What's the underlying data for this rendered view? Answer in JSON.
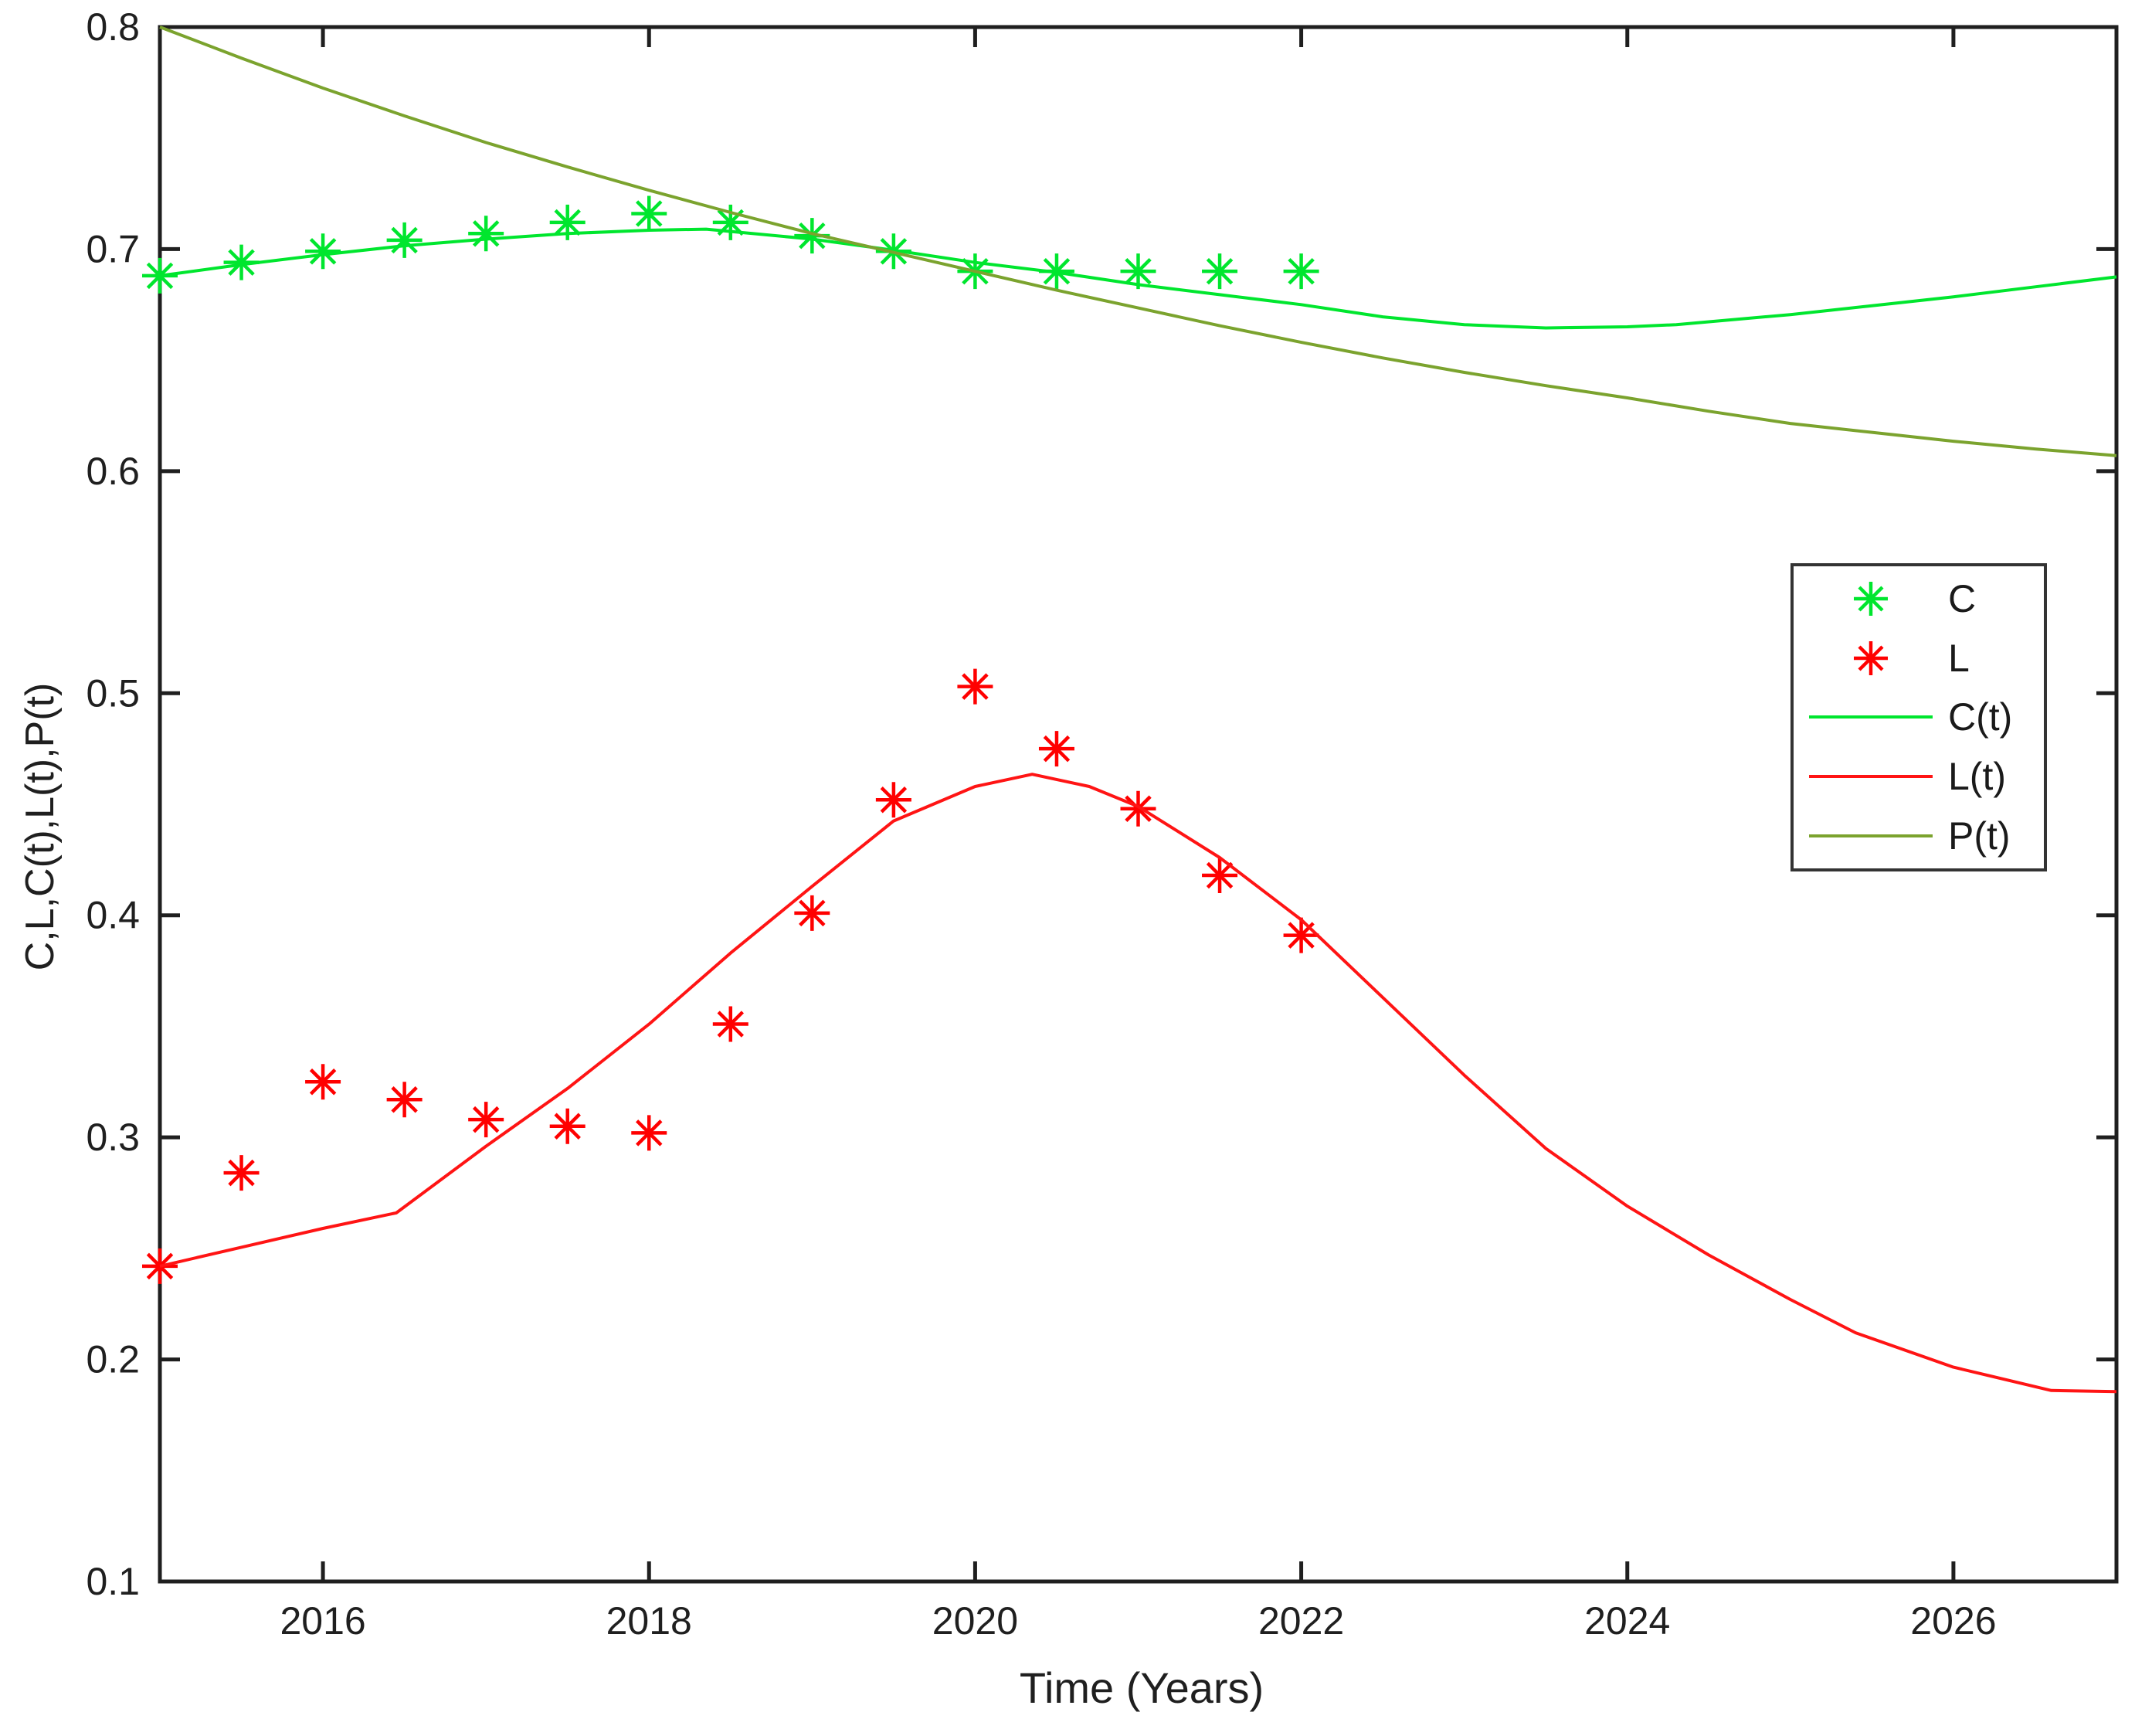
{
  "chart_data": {
    "type": "line",
    "title": "",
    "xlabel": "Time (Years)",
    "ylabel": "C,L,C(t),L(t),P(t)",
    "xlim": [
      2015,
      2027
    ],
    "ylim": [
      0.1,
      0.8
    ],
    "x_ticks": [
      2016,
      2018,
      2020,
      2022,
      2024,
      2026
    ],
    "y_ticks": [
      0.1,
      0.2,
      0.3,
      0.4,
      0.5,
      0.6,
      0.7,
      0.8
    ],
    "grid": false,
    "legend_position": "middle-right",
    "axis_color": "#1f1f1f",
    "background_color": "#ffffff",
    "series": [
      {
        "name": "C",
        "type": "scatter",
        "marker": "asterisk",
        "color": "#00E62E",
        "x": [
          2015,
          2015.5,
          2016,
          2016.5,
          2017,
          2017.5,
          2018,
          2018.5,
          2019,
          2019.5,
          2020,
          2020.5,
          2021,
          2021.5,
          2022
        ],
        "y": [
          0.688,
          0.694,
          0.699,
          0.704,
          0.707,
          0.712,
          0.716,
          0.712,
          0.706,
          0.699,
          0.69,
          0.69,
          0.69,
          0.69,
          0.69
        ]
      },
      {
        "name": "L",
        "type": "scatter",
        "marker": "asterisk",
        "color": "#FF0000",
        "x": [
          2015,
          2015.5,
          2016,
          2016.5,
          2017,
          2017.5,
          2018,
          2018.5,
          2019,
          2019.5,
          2020,
          2020.5,
          2021,
          2021.5,
          2022
        ],
        "y": [
          0.242,
          0.284,
          0.325,
          0.317,
          0.308,
          0.305,
          0.302,
          0.351,
          0.401,
          0.452,
          0.503,
          0.475,
          0.448,
          0.418,
          0.391
        ]
      },
      {
        "name": "C(t)",
        "type": "line",
        "color": "#00E62E",
        "points": [
          [
            2015,
            0.688
          ],
          [
            2015.5,
            0.693
          ],
          [
            2016,
            0.6975
          ],
          [
            2016.5,
            0.7015
          ],
          [
            2017,
            0.7045
          ],
          [
            2017.5,
            0.707
          ],
          [
            2018,
            0.7085
          ],
          [
            2018.35,
            0.709
          ],
          [
            2019,
            0.7045
          ],
          [
            2019.5,
            0.6995
          ],
          [
            2020,
            0.694
          ],
          [
            2020.5,
            0.6895
          ],
          [
            2021,
            0.684
          ],
          [
            2021.5,
            0.6795
          ],
          [
            2022,
            0.675
          ],
          [
            2022.5,
            0.6695
          ],
          [
            2023,
            0.666
          ],
          [
            2023.5,
            0.6645
          ],
          [
            2024,
            0.665
          ],
          [
            2024.3,
            0.666
          ],
          [
            2025,
            0.6705
          ],
          [
            2025.5,
            0.6745
          ],
          [
            2026,
            0.6785
          ],
          [
            2026.5,
            0.683
          ],
          [
            2027,
            0.6875
          ]
        ]
      },
      {
        "name": "L(t)",
        "type": "line",
        "color": "#FF1414",
        "points": [
          [
            2015,
            0.242
          ],
          [
            2015.5,
            0.2505
          ],
          [
            2016,
            0.259
          ],
          [
            2016.45,
            0.266
          ],
          [
            2017,
            0.296
          ],
          [
            2017.5,
            0.322
          ],
          [
            2018,
            0.351
          ],
          [
            2018.5,
            0.383
          ],
          [
            2019,
            0.413
          ],
          [
            2019.5,
            0.4425
          ],
          [
            2020,
            0.458
          ],
          [
            2020.35,
            0.4635
          ],
          [
            2020.7,
            0.458
          ],
          [
            2021,
            0.449
          ],
          [
            2021.5,
            0.426
          ],
          [
            2022,
            0.398
          ],
          [
            2022.5,
            0.363
          ],
          [
            2023,
            0.328
          ],
          [
            2023.5,
            0.295
          ],
          [
            2024,
            0.269
          ],
          [
            2024.5,
            0.247
          ],
          [
            2025,
            0.227
          ],
          [
            2025.4,
            0.212
          ],
          [
            2026,
            0.1965
          ],
          [
            2026.6,
            0.186
          ],
          [
            2027,
            0.1855
          ]
        ]
      },
      {
        "name": "P(t)",
        "type": "line",
        "color": "#7BA32E",
        "points": [
          [
            2015,
            0.8
          ],
          [
            2015.5,
            0.786
          ],
          [
            2016,
            0.7725
          ],
          [
            2016.5,
            0.76
          ],
          [
            2017,
            0.748
          ],
          [
            2017.5,
            0.737
          ],
          [
            2018,
            0.7265
          ],
          [
            2018.5,
            0.7165
          ],
          [
            2019,
            0.707
          ],
          [
            2019.5,
            0.6985
          ],
          [
            2020,
            0.69
          ],
          [
            2020.5,
            0.6815
          ],
          [
            2021,
            0.6735
          ],
          [
            2021.5,
            0.6655
          ],
          [
            2022,
            0.658
          ],
          [
            2022.5,
            0.651
          ],
          [
            2023,
            0.6445
          ],
          [
            2023.5,
            0.6385
          ],
          [
            2024,
            0.633
          ],
          [
            2024.5,
            0.627
          ],
          [
            2025,
            0.6215
          ],
          [
            2025.5,
            0.6175
          ],
          [
            2026,
            0.6135
          ],
          [
            2026.5,
            0.61
          ],
          [
            2027,
            0.607
          ]
        ]
      }
    ]
  },
  "legend": {
    "entries": [
      {
        "label": "C"
      },
      {
        "label": "L"
      },
      {
        "label": "C(t)"
      },
      {
        "label": "L(t)"
      },
      {
        "label": "P(t)"
      }
    ]
  }
}
